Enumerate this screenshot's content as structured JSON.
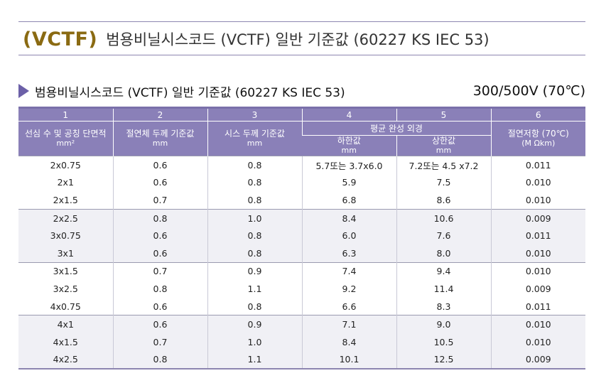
{
  "title": {
    "tag": "(VCTF)",
    "text": "범용비닐시스코드 (VCTF) 일반 기준값 (60227 KS IEC 53)"
  },
  "subtitle": {
    "text": "범용비닐시스코드 (VCTF) 일반 기준값 (60227 KS IEC 53)",
    "rating": "300/500V (70℃)"
  },
  "table": {
    "col_numbers": [
      "1",
      "2",
      "3",
      "4",
      "5",
      "6"
    ],
    "headers": {
      "col1": {
        "label": "선심 수 및 공칭 단면적",
        "unit": "mm²"
      },
      "col2": {
        "label": "절연체 두께 기준값",
        "unit": "mm"
      },
      "col3": {
        "label": "시스 두께 기준값",
        "unit": "mm"
      },
      "group45": "평균 완성 외경",
      "col4": {
        "label": "하한값",
        "unit": "mm"
      },
      "col5": {
        "label": "상한값",
        "unit": "mm"
      },
      "col6": {
        "label": "절연저항 (70℃)",
        "unit": "(M Ωkm)"
      }
    },
    "rows": [
      [
        "2x0.75",
        "0.6",
        "0.8",
        "5.7또는 3.7x6.0",
        "7.2또는 4.5 x7.2",
        "0.011"
      ],
      [
        "2x1",
        "0.6",
        "0.8",
        "5.9",
        "7.5",
        "0.010"
      ],
      [
        "2x1.5",
        "0.7",
        "0.8",
        "6.8",
        "8.6",
        "0.010"
      ],
      [
        "2x2.5",
        "0.8",
        "1.0",
        "8.4",
        "10.6",
        "0.009"
      ],
      [
        "3x0.75",
        "0.6",
        "0.8",
        "6.0",
        "7.6",
        "0.011"
      ],
      [
        "3x1",
        "0.6",
        "0.8",
        "6.3",
        "8.0",
        "0.010"
      ],
      [
        "3x1.5",
        "0.7",
        "0.9",
        "7.4",
        "9.4",
        "0.010"
      ],
      [
        "3x2.5",
        "0.8",
        "1.1",
        "9.2",
        "11.4",
        "0.009"
      ],
      [
        "4x0.75",
        "0.6",
        "0.8",
        "6.6",
        "8.3",
        "0.011"
      ],
      [
        "4x1",
        "0.6",
        "0.9",
        "7.1",
        "9.0",
        "0.010"
      ],
      [
        "4x1.5",
        "0.7",
        "1.0",
        "8.4",
        "10.5",
        "0.010"
      ],
      [
        "4x2.5",
        "0.8",
        "1.1",
        "10.1",
        "12.5",
        "0.009"
      ]
    ]
  },
  "colors": {
    "header_bg": "#8a80b8",
    "accent_triangle": "#6c60a8",
    "tag_gold": "#8a6a12",
    "rule": "#8d86b0",
    "band_gray": "#f0f0f5"
  }
}
